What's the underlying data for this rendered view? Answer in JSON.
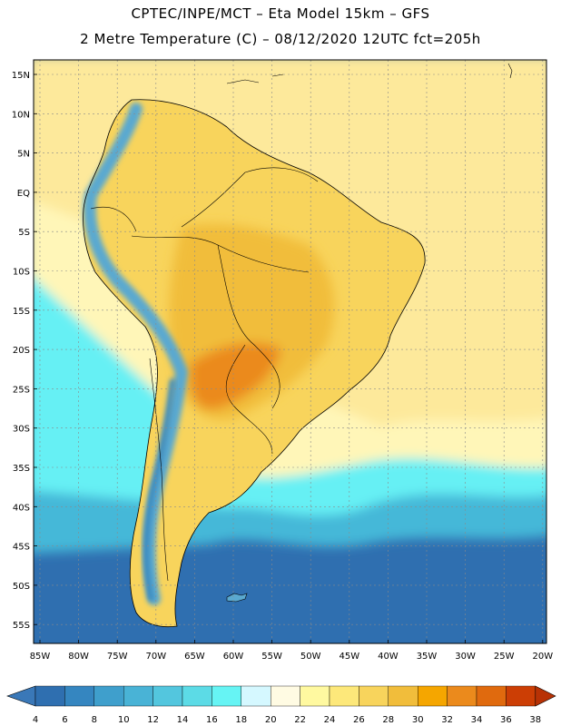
{
  "header": {
    "line1": "CPTEC/INPE/MCT –  Eta Model 15km – GFS",
    "line2": "2 Metre Temperature (C) – 08/12/2020 12UTC fct=205h"
  },
  "axes": {
    "lat_labels": [
      "15N",
      "10N",
      "5N",
      "EQ",
      "5S",
      "10S",
      "15S",
      "20S",
      "25S",
      "30S",
      "35S",
      "40S",
      "45S",
      "50S",
      "55S"
    ],
    "lon_labels": [
      "85W",
      "80W",
      "75W",
      "70W",
      "65W",
      "60W",
      "55W",
      "50W",
      "45W",
      "40W",
      "35W",
      "30W",
      "25W",
      "20W"
    ]
  },
  "colorbar": {
    "labels": [
      "4",
      "6",
      "8",
      "10",
      "12",
      "14",
      "16",
      "18",
      "20",
      "22",
      "24",
      "26",
      "28",
      "30",
      "32",
      "34",
      "36",
      "38"
    ],
    "colors": [
      "#2f6fb0",
      "#3586c0",
      "#3f9fcc",
      "#49b3d6",
      "#53c6de",
      "#5cdbe6",
      "#66f4f4",
      "#d5f8ff",
      "#fffbe3",
      "#fff9a0",
      "#fde87a",
      "#f8d45c",
      "#f1bd3b",
      "#f5a600",
      "#eb8a1c",
      "#e06a0e",
      "#cc3e05"
    ],
    "low_color": "#3a78b8",
    "high_color": "#b83205"
  },
  "regions": {
    "ocean_tropical": "#fde99b",
    "ocean_subtropical": "#fff6b8",
    "ocean_cool": "#66f0f4",
    "ocean_cold": "#44b8d8",
    "ocean_polar": "#2f6fb0",
    "land_hot": "#f1bd3b",
    "land_very_hot": "#eb8a1c",
    "land_warm": "#f8d45c",
    "andes": "#5aa9d0"
  }
}
